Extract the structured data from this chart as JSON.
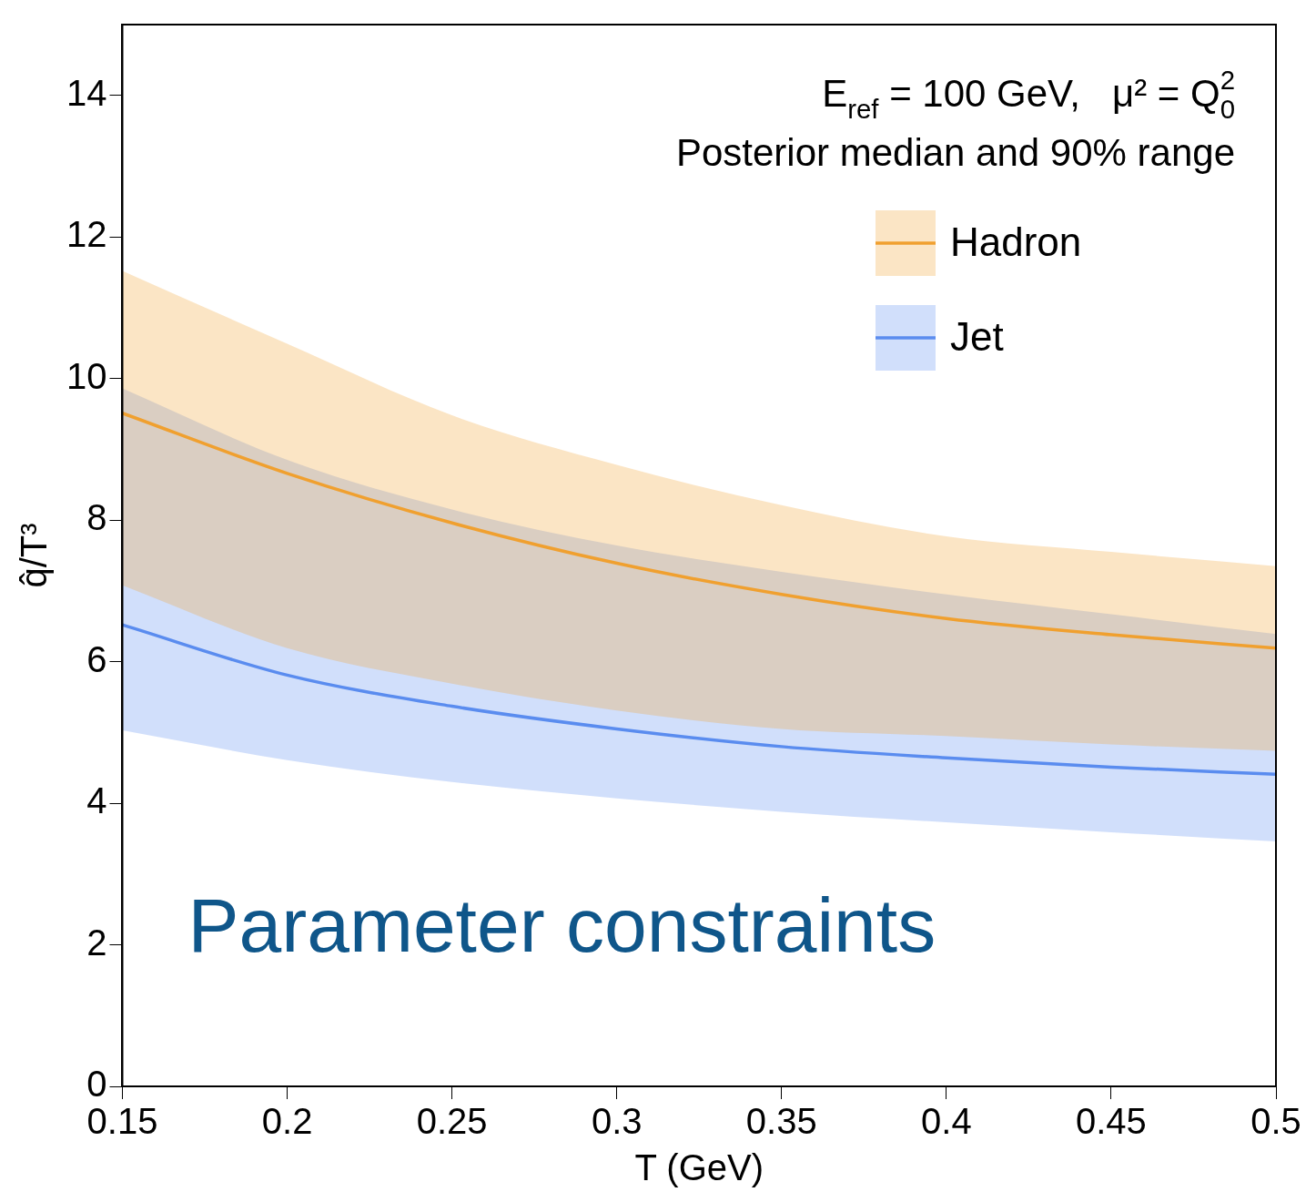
{
  "chart_data": {
    "type": "line",
    "xlabel": "T (GeV)",
    "ylabel": "q̂/T³",
    "x": [
      0.15,
      0.2,
      0.25,
      0.3,
      0.35,
      0.4,
      0.45,
      0.5
    ],
    "series": [
      {
        "name": "Hadron",
        "color": "#f0a030",
        "values": [
          9.51,
          8.66,
          7.96,
          7.39,
          6.95,
          6.61,
          6.38,
          6.19
        ],
        "lower": [
          7.08,
          6.19,
          5.69,
          5.31,
          5.05,
          4.95,
          4.83,
          4.74
        ],
        "upper": [
          11.52,
          10.49,
          9.48,
          8.78,
          8.21,
          7.77,
          7.55,
          7.35
        ]
      },
      {
        "name": "Jet",
        "color": "#5b8def",
        "values": [
          6.52,
          5.81,
          5.37,
          5.05,
          4.8,
          4.64,
          4.51,
          4.41
        ],
        "lower": [
          5.03,
          4.61,
          4.3,
          4.07,
          3.88,
          3.73,
          3.59,
          3.46
        ],
        "upper": [
          9.86,
          8.85,
          8.15,
          7.64,
          7.27,
          6.95,
          6.67,
          6.39
        ]
      }
    ],
    "xlim": [
      0.15,
      0.5
    ],
    "xticks": [
      0.15,
      0.2,
      0.25,
      0.3,
      0.35,
      0.4,
      0.45,
      0.5
    ],
    "ylim": [
      0,
      15
    ],
    "yticks": [
      0,
      2,
      4,
      6,
      8,
      10,
      12,
      14
    ],
    "grid": false,
    "legend": "top right",
    "marker": "none",
    "line_style": "solid",
    "annotations": [
      "E$_{ref}$ = 100 GeV,   μ² = Q$_{0}$$^{2}$",
      "Posterior median and 90% range",
      "Parameter constraints"
    ]
  }
}
